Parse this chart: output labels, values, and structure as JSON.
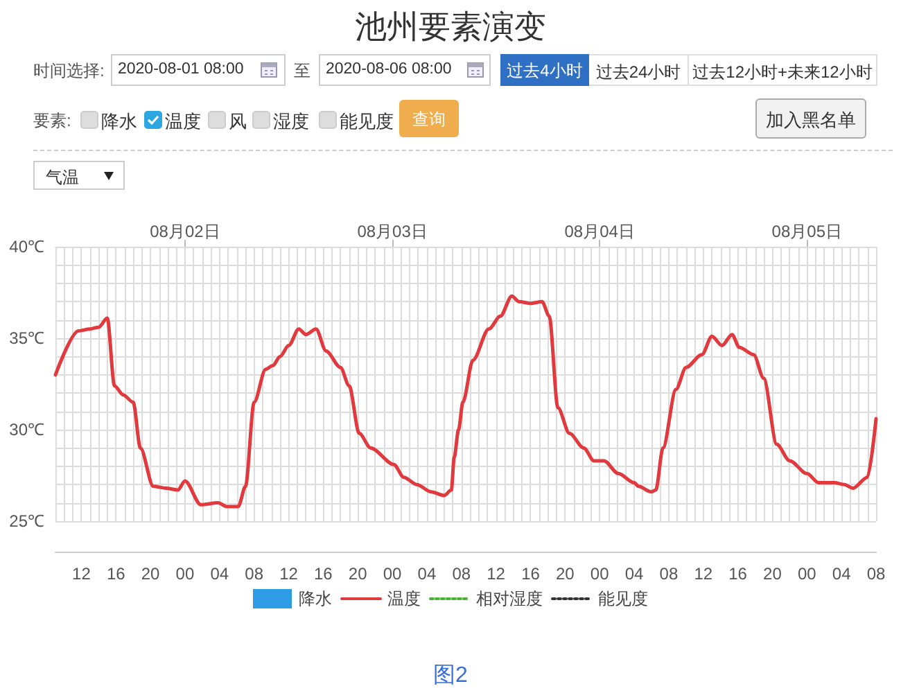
{
  "chart_data": {
    "type": "line",
    "title": "池州要素演变",
    "annotations": [
      "时间选择:",
      "2020-08-01 08:00",
      "至",
      "2020-08-06 08:00",
      "过去4小时",
      "过去24小时",
      "过去12小时+未来12小时",
      "要素:",
      "降水",
      "温度",
      "风",
      "湿度",
      "能见度",
      "查询",
      "加入黑名单",
      "气温",
      "图2"
    ],
    "x": [
      "2020-08-01T09:00",
      "2020-08-01T11:40",
      "2020-08-01T13:00",
      "2020-08-01T14:00",
      "2020-08-01T15:00",
      "2020-08-01T15:50",
      "2020-08-01T16:50",
      "2020-08-01T18:00",
      "2020-08-01T18:50",
      "2020-08-01T20:20",
      "2020-08-01T21:50",
      "2020-08-01T23:10",
      "2020-08-02T00:00",
      "2020-08-02T01:50",
      "2020-08-02T03:50",
      "2020-08-02T04:50",
      "2020-08-02T06:10",
      "2020-08-02T07:00",
      "2020-08-02T08:00",
      "2020-08-02T09:20",
      "2020-08-02T10:10",
      "2020-08-02T11:00",
      "2020-08-02T12:00",
      "2020-08-02T13:10",
      "2020-08-02T14:00",
      "2020-08-02T15:10",
      "2020-08-02T16:20",
      "2020-08-02T18:00",
      "2020-08-02T19:00",
      "2020-08-02T20:10",
      "2020-08-02T21:30",
      "2020-08-03T00:10",
      "2020-08-03T01:20",
      "2020-08-03T02:50",
      "2020-08-03T04:30",
      "2020-08-03T06:00",
      "2020-08-03T06:50",
      "2020-08-03T07:10",
      "2020-08-03T07:40",
      "2020-08-03T08:10",
      "2020-08-03T09:20",
      "2020-08-03T11:10",
      "2020-08-03T12:30",
      "2020-08-03T13:50",
      "2020-08-03T14:40",
      "2020-08-03T16:00",
      "2020-08-03T17:20",
      "2020-08-03T18:10",
      "2020-08-03T19:10",
      "2020-08-03T20:30",
      "2020-08-03T22:10",
      "2020-08-03T23:20",
      "2020-08-04T00:30",
      "2020-08-04T02:10",
      "2020-08-04T04:00",
      "2020-08-04T04:30",
      "2020-08-04T06:00",
      "2020-08-04T06:30",
      "2020-08-04T07:20",
      "2020-08-04T08:50",
      "2020-08-04T10:00",
      "2020-08-04T11:50",
      "2020-08-04T13:00",
      "2020-08-04T14:10",
      "2020-08-04T15:20",
      "2020-08-04T16:10",
      "2020-08-04T17:50",
      "2020-08-04T19:00",
      "2020-08-04T20:30",
      "2020-08-04T22:00",
      "2020-08-05T00:00",
      "2020-08-05T01:20",
      "2020-08-05T03:10",
      "2020-08-05T04:20",
      "2020-08-05T05:20",
      "2020-08-05T07:00",
      "2020-08-05T08:00"
    ],
    "series": [
      {
        "name": "降水",
        "type": "bar",
        "color": "#2e9be6",
        "values": [
          null,
          null,
          null,
          null,
          null,
          null,
          null,
          null,
          null,
          null,
          null,
          null,
          null,
          null,
          null,
          null,
          null,
          null,
          null,
          null,
          null,
          null,
          null,
          null,
          null,
          null,
          null,
          null,
          null,
          null,
          null,
          null,
          null,
          null,
          null,
          null,
          null,
          null,
          null,
          null,
          null,
          null,
          null,
          null,
          null,
          null,
          null,
          null,
          null,
          null,
          null,
          null,
          null,
          null,
          null,
          null,
          null,
          null,
          null,
          null,
          null,
          null,
          null,
          null,
          null,
          null,
          null,
          null,
          null,
          null,
          null,
          null,
          null,
          null,
          null,
          null,
          null
        ]
      },
      {
        "name": "温度",
        "color": "#e03a3e",
        "values": [
          33.0,
          35.4,
          35.5,
          35.6,
          36.1,
          32.4,
          31.9,
          31.5,
          29.0,
          26.9,
          26.8,
          26.7,
          27.2,
          25.9,
          26.0,
          25.8,
          25.8,
          26.9,
          31.5,
          33.3,
          33.5,
          34.0,
          34.6,
          35.5,
          35.2,
          35.5,
          34.3,
          33.4,
          32.4,
          29.8,
          29.0,
          28.1,
          27.4,
          27.0,
          26.6,
          26.4,
          26.7,
          28.5,
          30.0,
          31.5,
          33.8,
          35.5,
          36.2,
          37.3,
          37.0,
          36.9,
          37.0,
          36.2,
          31.2,
          29.8,
          29.0,
          28.3,
          28.3,
          27.6,
          27.1,
          26.9,
          26.6,
          26.7,
          29.0,
          32.2,
          33.4,
          34.1,
          35.1,
          34.6,
          35.2,
          34.5,
          34.1,
          32.8,
          29.2,
          28.3,
          27.6,
          27.1,
          27.1,
          27.0,
          26.8,
          27.4,
          30.6
        ]
      },
      {
        "name": "相对湿度",
        "type": "line",
        "color": "#4caf3a",
        "line_style": "dotted",
        "values": [
          null,
          null,
          null,
          null,
          null,
          null,
          null,
          null,
          null,
          null,
          null,
          null,
          null,
          null,
          null,
          null,
          null,
          null,
          null,
          null,
          null,
          null,
          null,
          null,
          null,
          null,
          null,
          null,
          null,
          null,
          null,
          null,
          null,
          null,
          null,
          null,
          null,
          null,
          null,
          null,
          null,
          null,
          null,
          null,
          null,
          null,
          null,
          null,
          null,
          null,
          null,
          null,
          null,
          null,
          null,
          null,
          null,
          null,
          null,
          null,
          null,
          null,
          null,
          null,
          null,
          null,
          null,
          null,
          null,
          null,
          null,
          null,
          null,
          null,
          null,
          null,
          null
        ]
      },
      {
        "name": "能见度",
        "type": "line",
        "color": "#333333",
        "line_style": "dotted",
        "values": [
          null,
          null,
          null,
          null,
          null,
          null,
          null,
          null,
          null,
          null,
          null,
          null,
          null,
          null,
          null,
          null,
          null,
          null,
          null,
          null,
          null,
          null,
          null,
          null,
          null,
          null,
          null,
          null,
          null,
          null,
          null,
          null,
          null,
          null,
          null,
          null,
          null,
          null,
          null,
          null,
          null,
          null,
          null,
          null,
          null,
          null,
          null,
          null,
          null,
          null,
          null,
          null,
          null,
          null,
          null,
          null,
          null,
          null,
          null,
          null,
          null,
          null,
          null,
          null,
          null,
          null,
          null,
          null,
          null,
          null,
          null,
          null,
          null,
          null,
          null,
          null,
          null
        ]
      }
    ],
    "xlim": [
      "2020-08-01T09:00",
      "2020-08-05T08:00"
    ],
    "xticks": [
      {
        "value": "2020-08-01T12:00",
        "label": "12"
      },
      {
        "value": "2020-08-01T16:00",
        "label": "16"
      },
      {
        "value": "2020-08-01T20:00",
        "label": "20"
      },
      {
        "value": "2020-08-02T00:00",
        "label": "00"
      },
      {
        "value": "2020-08-02T04:00",
        "label": "04"
      },
      {
        "value": "2020-08-02T08:00",
        "label": "08"
      },
      {
        "value": "2020-08-02T12:00",
        "label": "12"
      },
      {
        "value": "2020-08-02T16:00",
        "label": "16"
      },
      {
        "value": "2020-08-02T20:00",
        "label": "20"
      },
      {
        "value": "2020-08-03T00:00",
        "label": "00"
      },
      {
        "value": "2020-08-03T04:00",
        "label": "04"
      },
      {
        "value": "2020-08-03T08:00",
        "label": "08"
      },
      {
        "value": "2020-08-03T12:00",
        "label": "12"
      },
      {
        "value": "2020-08-03T16:00",
        "label": "16"
      },
      {
        "value": "2020-08-03T20:00",
        "label": "20"
      },
      {
        "value": "2020-08-04T00:00",
        "label": "00"
      },
      {
        "value": "2020-08-04T04:00",
        "label": "04"
      },
      {
        "value": "2020-08-04T08:00",
        "label": "08"
      },
      {
        "value": "2020-08-04T12:00",
        "label": "12"
      },
      {
        "value": "2020-08-04T16:00",
        "label": "16"
      },
      {
        "value": "2020-08-04T20:00",
        "label": "20"
      },
      {
        "value": "2020-08-05T00:00",
        "label": "00"
      },
      {
        "value": "2020-08-05T04:00",
        "label": "04"
      },
      {
        "value": "2020-08-05T08:00",
        "label": "08"
      }
    ],
    "x2lim": [
      "2020-08-01T09:00",
      "2020-08-05T08:00"
    ],
    "x2ticks": [
      {
        "value": "2020-08-02T00:00",
        "label": "08月02日"
      },
      {
        "value": "2020-08-03T00:00",
        "label": "08月03日"
      },
      {
        "value": "2020-08-04T00:00",
        "label": "08月04日"
      },
      {
        "value": "2020-08-05T00:00",
        "label": "08月05日"
      }
    ],
    "ylim": [
      25,
      40
    ],
    "yticks": [
      {
        "value": 25,
        "label": "25℃"
      },
      {
        "value": 30,
        "label": "30℃"
      },
      {
        "value": 35,
        "label": "35℃"
      },
      {
        "value": 40,
        "label": "40℃"
      }
    ],
    "grid": true,
    "legend": "bottom",
    "marker": "none",
    "line_style": "solid"
  }
}
